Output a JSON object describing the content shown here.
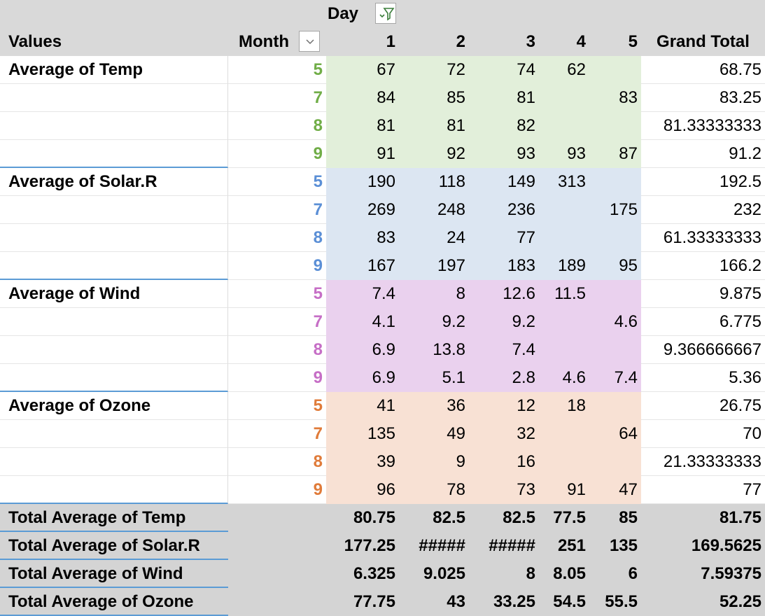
{
  "pivot": {
    "header": {
      "field_day": "Day",
      "values_label": "Values",
      "month_label": "Month",
      "day_columns": [
        "1",
        "2",
        "3",
        "4",
        "5"
      ],
      "grand_total_label": "Grand Total"
    },
    "groups": [
      {
        "label": "Average of Temp",
        "fill": "#e2efda",
        "month_color": "#70ad47",
        "rows": [
          {
            "month": "5",
            "days": [
              "67",
              "72",
              "74",
              "62",
              ""
            ],
            "total": "68.75"
          },
          {
            "month": "7",
            "days": [
              "84",
              "85",
              "81",
              "",
              "83"
            ],
            "total": "83.25"
          },
          {
            "month": "8",
            "days": [
              "81",
              "81",
              "82",
              "",
              ""
            ],
            "total": "81.33333333"
          },
          {
            "month": "9",
            "days": [
              "91",
              "92",
              "93",
              "93",
              "87"
            ],
            "total": "91.2"
          }
        ]
      },
      {
        "label": "Average of Solar.R",
        "fill": "#dce6f2",
        "month_color": "#5b8fd6",
        "rows": [
          {
            "month": "5",
            "days": [
              "190",
              "118",
              "149",
              "313",
              ""
            ],
            "total": "192.5"
          },
          {
            "month": "7",
            "days": [
              "269",
              "248",
              "236",
              "",
              "175"
            ],
            "total": "232"
          },
          {
            "month": "8",
            "days": [
              "83",
              "24",
              "77",
              "",
              ""
            ],
            "total": "61.33333333"
          },
          {
            "month": "9",
            "days": [
              "167",
              "197",
              "183",
              "189",
              "95"
            ],
            "total": "166.2"
          }
        ]
      },
      {
        "label": "Average of Wind",
        "fill": "#ead1ee",
        "month_color": "#c66ec6",
        "rows": [
          {
            "month": "5",
            "days": [
              "7.4",
              "8",
              "12.6",
              "11.5",
              ""
            ],
            "total": "9.875"
          },
          {
            "month": "7",
            "days": [
              "4.1",
              "9.2",
              "9.2",
              "",
              "4.6"
            ],
            "total": "6.775"
          },
          {
            "month": "8",
            "days": [
              "6.9",
              "13.8",
              "7.4",
              "",
              ""
            ],
            "total": "9.366666667"
          },
          {
            "month": "9",
            "days": [
              "6.9",
              "5.1",
              "2.8",
              "4.6",
              "7.4"
            ],
            "total": "5.36"
          }
        ]
      },
      {
        "label": "Average of Ozone",
        "fill": "#f8e1d4",
        "month_color": "#e07b39",
        "rows": [
          {
            "month": "5",
            "days": [
              "41",
              "36",
              "12",
              "18",
              ""
            ],
            "total": "26.75"
          },
          {
            "month": "7",
            "days": [
              "135",
              "49",
              "32",
              "",
              "64"
            ],
            "total": "70"
          },
          {
            "month": "8",
            "days": [
              "39",
              "9",
              "16",
              "",
              ""
            ],
            "total": "21.33333333"
          },
          {
            "month": "9",
            "days": [
              "96",
              "78",
              "73",
              "91",
              "47"
            ],
            "total": "77"
          }
        ]
      }
    ],
    "totals": [
      {
        "label": "Total Average of Temp",
        "days": [
          "80.75",
          "82.5",
          "82.5",
          "77.5",
          "85"
        ],
        "total": "81.75"
      },
      {
        "label": "Total Average of Solar.R",
        "days": [
          "177.25",
          "#####",
          "#####",
          "251",
          "135"
        ],
        "total": "169.5625"
      },
      {
        "label": "Total Average of Wind",
        "days": [
          "6.325",
          "9.025",
          "8",
          "8.05",
          "6"
        ],
        "total": "7.59375"
      },
      {
        "label": "Total Average of Ozone",
        "days": [
          "77.75",
          "43",
          "33.25",
          "54.5",
          "55.5"
        ],
        "total": "52.25"
      }
    ],
    "icons": {
      "day_filter": "filter-applied-icon",
      "month_filter": "dropdown-arrow-icon"
    },
    "colors": {
      "header_bg": "#d9d9d9",
      "totals_bg": "#d4d4d4",
      "accent_line": "#5b9bd5"
    }
  }
}
